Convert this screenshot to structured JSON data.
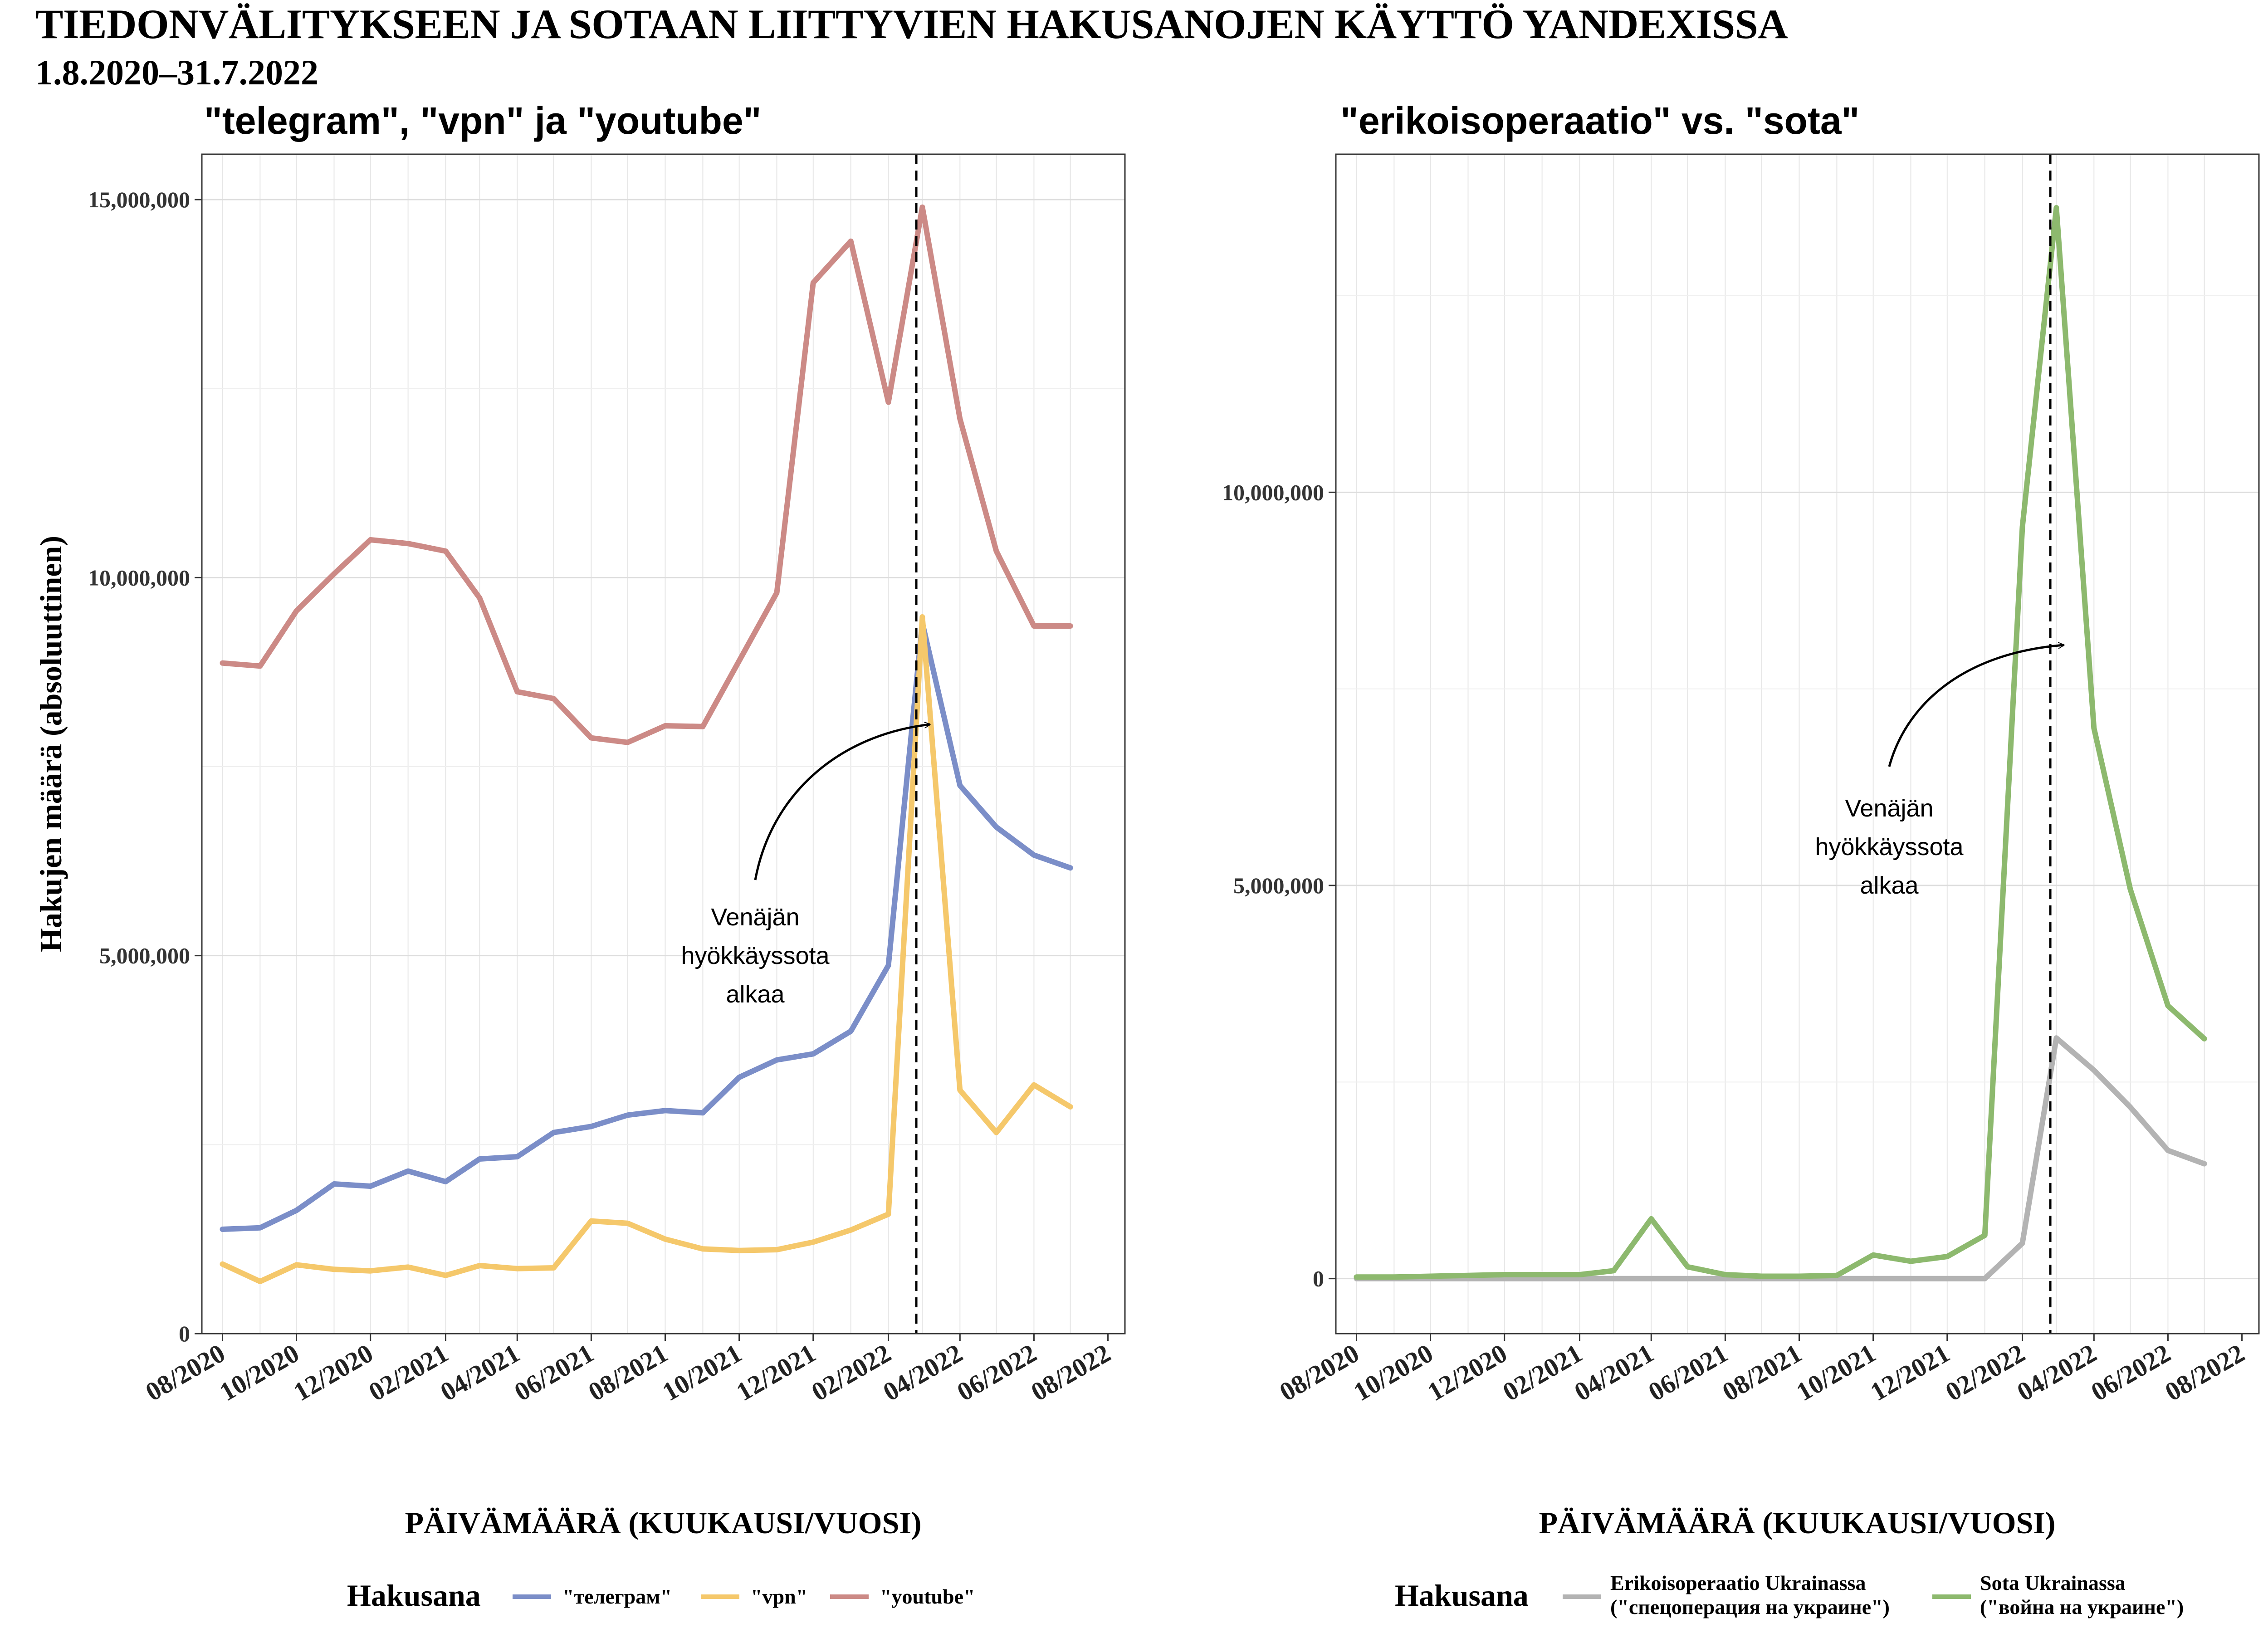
{
  "title": "TIEDONVÄLITYKSEEN JA SOTAAN LIITTYVIEN HAKUSANOJEN KÄYTTÖ YANDEXISSA",
  "subtitle": "1.8.2020–31.7.2022",
  "colors": {
    "telegram": "#7b8ec8",
    "vpn": "#f5c86b",
    "youtube": "#cc8a86",
    "erikoisoperaatio": "#b3b3b3",
    "sota": "#8db96e"
  },
  "chart_data": [
    {
      "type": "line",
      "title": "\"telegram\", \"vpn\" ja \"youtube\"",
      "ylabel": "Hakujen määrä (absoluuttinen)",
      "xlabel": "PÄIVÄMÄÄRÄ (KUUKAUSI/VUOSI)",
      "xlim": [
        "2020-07-15",
        "2022-08-15"
      ],
      "ylim": [
        0,
        15600000
      ],
      "grid": true,
      "x_tick_labels": [
        "08/2020",
        "10/2020",
        "12/2020",
        "02/2021",
        "04/2021",
        "06/2021",
        "08/2021",
        "10/2021",
        "12/2021",
        "02/2022",
        "04/2022",
        "06/2022",
        "08/2022"
      ],
      "y_tick_labels": [
        "0",
        "5,000,000",
        "10,000,000",
        "15,000,000"
      ],
      "y_ticks": [
        0,
        5000000,
        10000000,
        15000000
      ],
      "x": [
        "2020-08-01",
        "2020-09-01",
        "2020-10-01",
        "2020-11-01",
        "2020-12-01",
        "2021-01-01",
        "2021-02-01",
        "2021-03-01",
        "2021-04-01",
        "2021-05-01",
        "2021-06-01",
        "2021-07-01",
        "2021-08-01",
        "2021-09-01",
        "2021-10-01",
        "2021-11-01",
        "2021-12-01",
        "2022-01-01",
        "2022-02-01",
        "2022-03-01",
        "2022-04-01",
        "2022-05-01",
        "2022-06-01",
        "2022-07-01"
      ],
      "vline": "2022-02-24",
      "series": [
        {
          "name": "\"телеграм\"",
          "key": "telegram",
          "values": [
            1380000,
            1400000,
            1630000,
            1980000,
            1950000,
            2150000,
            2010000,
            2310000,
            2340000,
            2660000,
            2740000,
            2890000,
            2950000,
            2920000,
            3390000,
            3620000,
            3700000,
            4000000,
            4870000,
            9400000,
            7250000,
            6700000,
            6330000,
            6160000
          ]
        },
        {
          "name": "\"vpn\"",
          "key": "vpn",
          "values": [
            920000,
            690000,
            910000,
            850000,
            830000,
            880000,
            770000,
            900000,
            860000,
            870000,
            1490000,
            1460000,
            1250000,
            1120000,
            1100000,
            1110000,
            1210000,
            1370000,
            1580000,
            9480000,
            3220000,
            2660000,
            3290000,
            3000000
          ]
        },
        {
          "name": "\"youtube\"",
          "key": "youtube",
          "values": [
            8870000,
            8830000,
            9560000,
            10050000,
            10500000,
            10450000,
            10350000,
            9730000,
            8490000,
            8400000,
            7880000,
            7820000,
            8040000,
            8030000,
            8900000,
            9800000,
            13900000,
            14450000,
            12320000,
            14900000,
            12100000,
            10350000,
            9360000,
            9360000
          ]
        }
      ],
      "annotation": [
        "Venäjän",
        "hyökkäyssota",
        "alkaa"
      ],
      "legend": {
        "title": "Hakusana",
        "position": "bottom"
      }
    },
    {
      "type": "line",
      "title": "\"erikoisoperaatio\" vs. \"sota\"",
      "xlabel": "PÄIVÄMÄÄRÄ (KUUKAUSI/VUOSI)",
      "xlim": [
        "2020-07-15",
        "2022-08-15"
      ],
      "ylim": [
        -700000,
        14300000
      ],
      "grid": true,
      "x_tick_labels": [
        "08/2020",
        "10/2020",
        "12/2020",
        "02/2021",
        "04/2021",
        "06/2021",
        "08/2021",
        "10/2021",
        "12/2021",
        "02/2022",
        "04/2022",
        "06/2022",
        "08/2022"
      ],
      "y_tick_labels": [
        "0",
        "5,000,000",
        "10,000,000"
      ],
      "y_ticks": [
        0,
        5000000,
        10000000
      ],
      "x": [
        "2020-08-01",
        "2020-09-01",
        "2020-10-01",
        "2020-11-01",
        "2020-12-01",
        "2021-01-01",
        "2021-02-01",
        "2021-03-01",
        "2021-04-01",
        "2021-05-01",
        "2021-06-01",
        "2021-07-01",
        "2021-08-01",
        "2021-09-01",
        "2021-10-01",
        "2021-11-01",
        "2021-12-01",
        "2022-01-01",
        "2022-02-01",
        "2022-03-01",
        "2022-04-01",
        "2022-05-01",
        "2022-06-01",
        "2022-07-01"
      ],
      "vline": "2022-02-24",
      "series": [
        {
          "name": "Erikoisoperaatio Ukrainassa (\"спецоперация на украине\")",
          "key": "erikoisoperaatio",
          "values": [
            0,
            0,
            0,
            0,
            0,
            0,
            0,
            0,
            0,
            0,
            0,
            0,
            0,
            0,
            0,
            0,
            0,
            0,
            450000,
            3060000,
            2650000,
            2180000,
            1630000,
            1460000
          ]
        },
        {
          "name": "Sota Ukrainassa (\"война на украине\")",
          "key": "sota",
          "values": [
            20000,
            20000,
            30000,
            40000,
            50000,
            50000,
            50000,
            100000,
            760000,
            150000,
            50000,
            30000,
            30000,
            40000,
            300000,
            220000,
            280000,
            550000,
            9560000,
            13620000,
            7000000,
            4950000,
            3470000,
            3050000
          ]
        }
      ],
      "annotation": [
        "Venäjän",
        "hyökkäyssota",
        "alkaa"
      ],
      "legend": {
        "title": "Hakusana",
        "position": "bottom",
        "entries": [
          [
            "Erikoisoperaatio Ukrainassa",
            "(\"спецоперация на украине\")"
          ],
          [
            "Sota Ukrainassa",
            "(\"война на украине\")"
          ]
        ]
      }
    }
  ]
}
